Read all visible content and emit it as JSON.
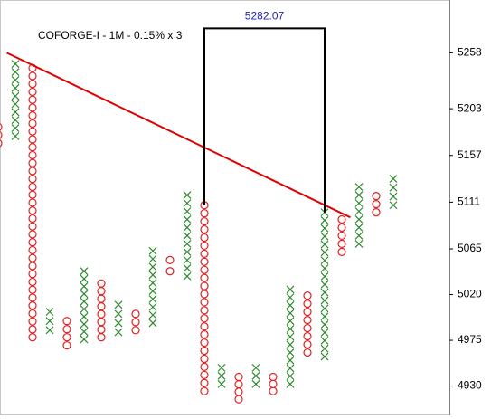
{
  "chart_data": {
    "type": "point-and-figure",
    "title": "COFORGE-I - 1M - 0.15% x 3",
    "x_color": "#2e8b2e",
    "o_color": "#e02020",
    "columns": [
      {
        "type": "O",
        "high": 5185,
        "low": 5169
      },
      {
        "type": "X",
        "high": 5247,
        "low": 5176
      },
      {
        "type": "O",
        "high": 5243,
        "low": 4978
      },
      {
        "type": "X",
        "high": 5003,
        "low": 4985
      },
      {
        "type": "O",
        "high": 4994,
        "low": 4970
      },
      {
        "type": "X",
        "high": 5043,
        "low": 4976
      },
      {
        "type": "O",
        "high": 5031,
        "low": 4978
      },
      {
        "type": "X",
        "high": 5010,
        "low": 4983
      },
      {
        "type": "O",
        "high": 5001,
        "low": 4985
      },
      {
        "type": "X",
        "high": 5063,
        "low": 4992
      },
      {
        "type": "O",
        "high": 5054,
        "low": 5043
      },
      {
        "type": "X",
        "high": 5118,
        "low": 5038
      },
      {
        "type": "O",
        "high": 5108,
        "low": 4925
      },
      {
        "type": "X",
        "high": 4948,
        "low": 4932
      },
      {
        "type": "O",
        "high": 4939,
        "low": 4917
      },
      {
        "type": "X",
        "high": 4948,
        "low": 4932
      },
      {
        "type": "O",
        "high": 4939,
        "low": 4925
      },
      {
        "type": "X",
        "high": 5025,
        "low": 4932
      },
      {
        "type": "O",
        "high": 5019,
        "low": 4963
      },
      {
        "type": "X",
        "high": 5101,
        "low": 4959
      },
      {
        "type": "O",
        "high": 5094,
        "low": 5062
      },
      {
        "type": "X",
        "high": 5126,
        "low": 5070
      },
      {
        "type": "O",
        "high": 5117,
        "low": 5101
      },
      {
        "type": "X",
        "high": 5134,
        "low": 5108
      }
    ],
    "trendline": {
      "color": "#e00000",
      "x": [
        0.5,
        20.5
      ],
      "values": [
        5258,
        5096
      ]
    },
    "annotation": {
      "value": 5282.07,
      "color": "#2020c0",
      "from_column": 12,
      "to_column": 19
    },
    "ylim": [
      4902,
      5310
    ],
    "yticks": [
      4930,
      4975,
      5020,
      5065,
      5111,
      5157,
      5203,
      5258
    ]
  }
}
